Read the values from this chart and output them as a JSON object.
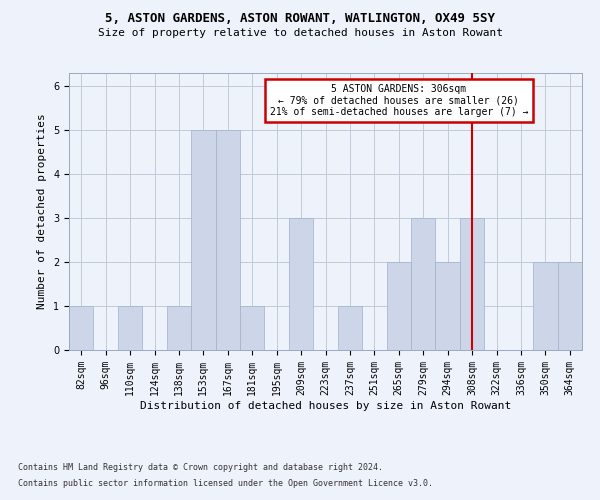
{
  "title1": "5, ASTON GARDENS, ASTON ROWANT, WATLINGTON, OX49 5SY",
  "title2": "Size of property relative to detached houses in Aston Rowant",
  "xlabel": "Distribution of detached houses by size in Aston Rowant",
  "ylabel": "Number of detached properties",
  "footer1": "Contains HM Land Registry data © Crown copyright and database right 2024.",
  "footer2": "Contains public sector information licensed under the Open Government Licence v3.0.",
  "categories": [
    "82sqm",
    "96sqm",
    "110sqm",
    "124sqm",
    "138sqm",
    "153sqm",
    "167sqm",
    "181sqm",
    "195sqm",
    "209sqm",
    "223sqm",
    "237sqm",
    "251sqm",
    "265sqm",
    "279sqm",
    "294sqm",
    "308sqm",
    "322sqm",
    "336sqm",
    "350sqm",
    "364sqm"
  ],
  "values": [
    1,
    0,
    1,
    0,
    1,
    5,
    5,
    1,
    0,
    3,
    0,
    1,
    0,
    2,
    3,
    2,
    3,
    0,
    0,
    2,
    2
  ],
  "bar_color": "#ccd6e8",
  "bar_edge_color": "#a0b0cc",
  "grid_color": "#c0cad8",
  "vline_index": 16.5,
  "ann_color": "#cc0000",
  "ann_line1": "5 ASTON GARDENS: 306sqm",
  "ann_line2": "← 79% of detached houses are smaller (26)",
  "ann_line3": "21% of semi-detached houses are larger (7) →",
  "ylim": [
    0,
    6.3
  ],
  "yticks": [
    0,
    1,
    2,
    3,
    4,
    5,
    6
  ],
  "bg_color": "#eef2fa",
  "title1_fontsize": 9,
  "title2_fontsize": 8,
  "ylabel_fontsize": 8,
  "xlabel_fontsize": 8,
  "tick_fontsize": 7,
  "ann_fontsize": 7,
  "footer_fontsize": 6
}
